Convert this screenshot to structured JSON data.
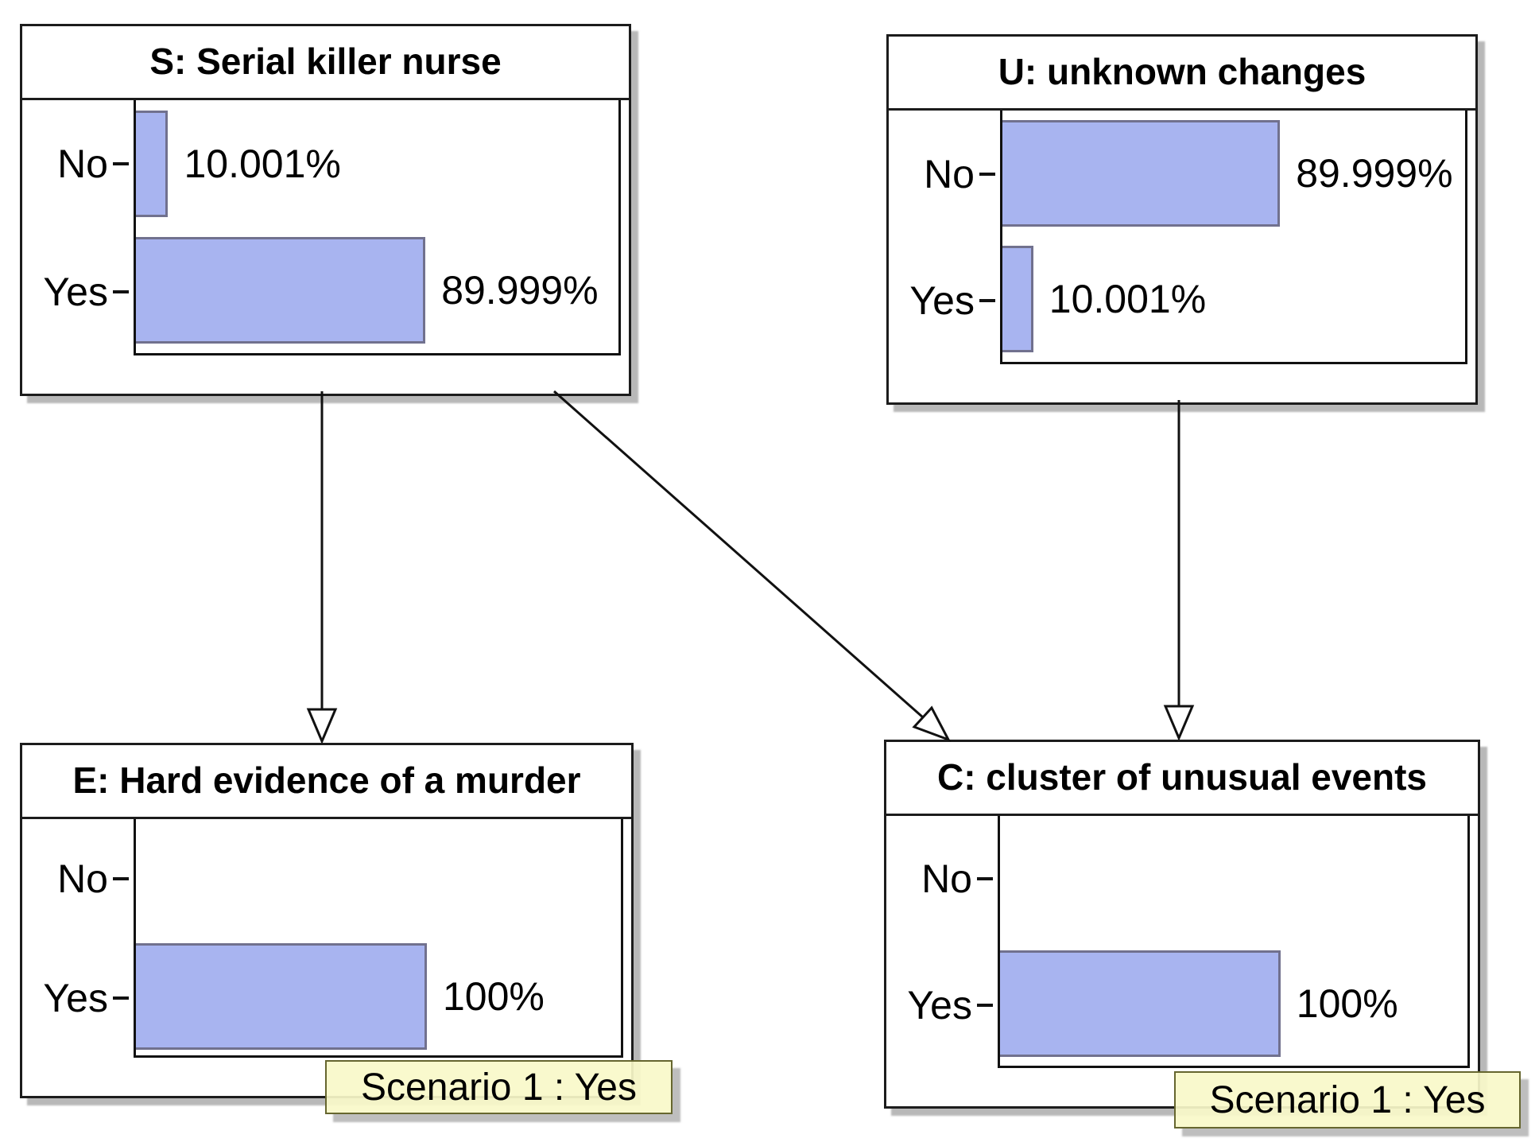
{
  "nodes": [
    {
      "id": "S",
      "title": "S: Serial killer nurse",
      "states": [
        {
          "label": "No",
          "value": 10.001,
          "display": "10.001%"
        },
        {
          "label": "Yes",
          "value": 89.999,
          "display": "89.999%"
        }
      ]
    },
    {
      "id": "U",
      "title": "U: unknown changes",
      "states": [
        {
          "label": "No",
          "value": 89.999,
          "display": "89.999%"
        },
        {
          "label": "Yes",
          "value": 10.001,
          "display": "10.001%"
        }
      ]
    },
    {
      "id": "E",
      "title": "E: Hard evidence of a murder",
      "states": [
        {
          "label": "No",
          "value": 0,
          "display": ""
        },
        {
          "label": "Yes",
          "value": 100,
          "display": "100%"
        }
      ],
      "scenario": "Scenario 1 : Yes"
    },
    {
      "id": "C",
      "title": "C: cluster of unusual events",
      "states": [
        {
          "label": "No",
          "value": 0,
          "display": ""
        },
        {
          "label": "Yes",
          "value": 100,
          "display": "100%"
        }
      ],
      "scenario": "Scenario 1 : Yes"
    }
  ],
  "edges": [
    {
      "from": "S",
      "to": "E"
    },
    {
      "from": "S",
      "to": "C"
    },
    {
      "from": "U",
      "to": "C"
    }
  ],
  "colors": {
    "bar_fill": "#a8b4f0",
    "bar_border": "#71718e",
    "node_border": "#1c1c1c",
    "scenario_border": "#66662f"
  }
}
